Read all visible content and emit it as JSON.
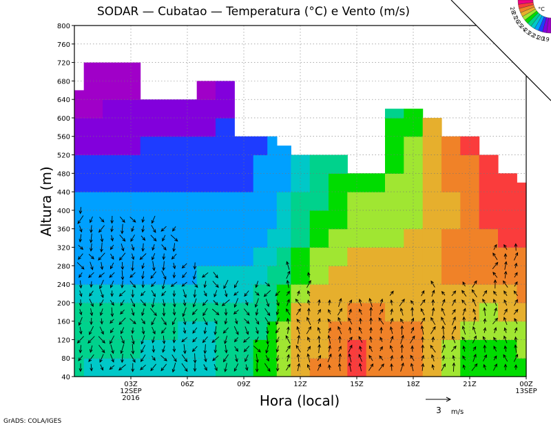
{
  "chart_data": {
    "type": "heatmap",
    "title": "SODAR — Cubatao — Temperatura (°C) e Vento (m/s)",
    "xlabel": "Hora (local)",
    "ylabel": "Altura (m)",
    "credit": "GrADS: COLA/IGES",
    "x_range_hours": [
      0,
      24
    ],
    "ylim": [
      40,
      800
    ],
    "y_ticks": [
      40,
      80,
      120,
      160,
      200,
      240,
      280,
      320,
      360,
      400,
      440,
      480,
      520,
      560,
      600,
      640,
      680,
      720,
      760,
      800
    ],
    "x_ticks": [
      {
        "hour": 3,
        "lines": [
          "03Z",
          "12SEP",
          "2016"
        ]
      },
      {
        "hour": 6,
        "lines": [
          "06Z"
        ]
      },
      {
        "hour": 9,
        "lines": [
          "09Z"
        ]
      },
      {
        "hour": 12,
        "lines": [
          "12Z"
        ]
      },
      {
        "hour": 15,
        "lines": [
          "15Z"
        ]
      },
      {
        "hour": 18,
        "lines": [
          "18Z"
        ]
      },
      {
        "hour": 21,
        "lines": [
          "21Z"
        ]
      },
      {
        "hour": 24,
        "lines": [
          "00Z",
          "13SEP"
        ]
      }
    ],
    "grid": true,
    "colorbar": {
      "unit": "°C",
      "levels": [
        "19",
        "20",
        "21",
        "22",
        "23",
        "24",
        "25",
        "26",
        "27",
        "28"
      ],
      "colors": [
        "#a000c8",
        "#8200dc",
        "#1e3cff",
        "#00a0ff",
        "#00c8c8",
        "#00d28c",
        "#00dc00",
        "#a0e632",
        "#e6af2d",
        "#f08228",
        "#fa3c3c",
        "#f00082"
      ]
    },
    "wind_reference": {
      "speed": 3,
      "label": "3",
      "unit": "m/s"
    },
    "temperature_columns": [
      {
        "hour": 0.0,
        "top": 660,
        "temps": [
          23.0,
          23.5,
          23.8,
          23.7,
          22.0,
          21.6,
          21.3,
          21.2,
          21.1,
          21.0,
          20.4,
          20.0,
          19.6,
          19.2,
          18.8,
          18.4,
          18.0
        ]
      },
      {
        "hour": 1.0,
        "top": 780,
        "temps": [
          22.8,
          23.3,
          23.6,
          23.7,
          22.0,
          21.6,
          21.3,
          21.2,
          21.1,
          21.0,
          20.5,
          20.1,
          19.7,
          19.3,
          18.9,
          18.6,
          18.0
        ]
      },
      {
        "hour": 2.0,
        "top": 760,
        "temps": [
          22.6,
          23.2,
          23.6,
          23.7,
          22.0,
          21.6,
          21.3,
          21.2,
          21.1,
          21.0,
          20.5,
          20.1,
          19.8,
          19.5,
          19.2,
          18.9,
          18.3
        ]
      },
      {
        "hour": 3.0,
        "top": 740,
        "temps": [
          22.4,
          23.0,
          23.4,
          23.6,
          22.1,
          21.6,
          21.4,
          21.2,
          21.1,
          21.0,
          20.6,
          20.2,
          19.9,
          19.6,
          19.2,
          18.9,
          18.4
        ]
      },
      {
        "hour": 4.0,
        "top": 640,
        "temps": [
          22.2,
          22.8,
          23.2,
          23.4,
          22.2,
          21.7,
          21.5,
          21.3,
          21.1,
          21.0,
          20.7,
          20.3,
          20.0,
          19.6,
          19.1,
          18.7,
          18.4
        ]
      },
      {
        "hour": 5.0,
        "top": 640,
        "temps": [
          22.0,
          22.6,
          23.0,
          23.2,
          22.3,
          21.8,
          21.5,
          21.3,
          21.1,
          21.0,
          20.8,
          20.4,
          20.0,
          19.6,
          19.1,
          18.6,
          18.3
        ]
      },
      {
        "hour": 6.0,
        "top": 640,
        "temps": [
          22.2,
          22.5,
          22.9,
          23.1,
          22.4,
          21.9,
          21.6,
          21.3,
          21.1,
          21.0,
          20.9,
          20.5,
          20.1,
          19.7,
          19.2,
          18.7,
          18.3
        ]
      },
      {
        "hour": 7.0,
        "top": 680,
        "temps": [
          22.6,
          22.7,
          22.9,
          23.0,
          22.5,
          22.0,
          21.7,
          21.4,
          21.2,
          21.0,
          20.9,
          20.7,
          20.3,
          19.9,
          19.4,
          18.9,
          18.4
        ]
      },
      {
        "hour": 8.0,
        "top": 680,
        "temps": [
          23.0,
          23.0,
          23.1,
          23.1,
          22.6,
          22.2,
          21.8,
          21.5,
          21.2,
          21.0,
          20.9,
          20.8,
          20.4,
          20.0,
          19.5,
          19.0,
          18.5
        ]
      },
      {
        "hour": 9.0,
        "top": 560,
        "temps": [
          23.3,
          23.3,
          23.3,
          23.3,
          22.8,
          22.3,
          21.9,
          21.6,
          21.3,
          21.1,
          20.9,
          20.8,
          20.5,
          20.1
        ]
      },
      {
        "hour": 10.0,
        "top": 560,
        "temps": [
          24.0,
          24.0,
          23.6,
          23.4,
          23.1,
          22.6,
          22.2,
          21.8,
          21.5,
          21.3,
          21.1,
          21.0,
          20.8,
          20.4
        ]
      },
      {
        "hour": 10.5,
        "top": 560,
        "temps": [
          24.8,
          24.6,
          24.2,
          23.8,
          23.5,
          23.0,
          22.6,
          22.2,
          21.8,
          21.6,
          21.4,
          21.2,
          21.0,
          20.6
        ]
      },
      {
        "hour": 11.0,
        "top": 540,
        "temps": [
          25.8,
          25.5,
          25.1,
          24.5,
          24.0,
          23.5,
          23.1,
          22.8,
          22.4,
          22.2,
          21.8,
          21.5,
          21.3
        ]
      },
      {
        "hour": 12.0,
        "top": 520,
        "temps": [
          26.8,
          26.6,
          26.3,
          26.0,
          25.4,
          24.8,
          24.3,
          23.8,
          23.3,
          23.0,
          22.6,
          22.2
        ]
      },
      {
        "hour": 13.0,
        "top": 520,
        "temps": [
          27.0,
          26.9,
          26.7,
          26.4,
          26.0,
          25.6,
          25.0,
          24.6,
          24.2,
          23.9,
          23.5,
          23.1
        ]
      },
      {
        "hour": 14.0,
        "top": 520,
        "temps": [
          27.3,
          27.2,
          27.0,
          26.8,
          26.5,
          26.1,
          25.7,
          25.3,
          24.9,
          24.6,
          24.2,
          23.8
        ]
      },
      {
        "hour": 15.0,
        "top": 480,
        "temps": [
          28.2,
          28.0,
          27.5,
          27.0,
          26.6,
          26.3,
          26.0,
          25.7,
          25.3,
          25.0,
          24.6
        ]
      },
      {
        "hour": 16.0,
        "top": 480,
        "temps": [
          27.8,
          27.6,
          27.4,
          27.0,
          26.6,
          26.3,
          26.0,
          25.6,
          25.3,
          25.0,
          24.6
        ]
      },
      {
        "hour": 17.0,
        "top": 620,
        "temps": [
          27.4,
          27.3,
          27.1,
          26.9,
          26.6,
          26.3,
          26.0,
          25.8,
          25.6,
          25.4,
          25.1,
          24.9,
          24.5,
          24.1,
          23.7
        ]
      },
      {
        "hour": 18.0,
        "top": 620,
        "temps": [
          27.2,
          27.1,
          27.0,
          26.9,
          26.7,
          26.4,
          26.2,
          26.0,
          25.8,
          25.7,
          25.5,
          25.3,
          25.0,
          24.8,
          24.5
        ]
      },
      {
        "hour": 19.0,
        "top": 600,
        "temps": [
          26.8,
          26.9,
          26.9,
          26.9,
          26.8,
          26.6,
          26.4,
          26.3,
          26.2,
          26.3,
          26.3,
          26.4,
          26.5,
          26.6
        ]
      },
      {
        "hour": 20.0,
        "top": 560,
        "temps": [
          25.5,
          25.8,
          26.2,
          26.6,
          26.9,
          27.1,
          27.1,
          27.0,
          26.9,
          26.9,
          27.0,
          27.1,
          27.3
        ]
      },
      {
        "hour": 21.0,
        "top": 560,
        "temps": [
          24.4,
          24.8,
          25.4,
          26.0,
          26.5,
          27.0,
          27.4,
          27.6,
          27.7,
          27.7,
          27.8,
          27.9,
          28.0
        ]
      },
      {
        "hour": 22.0,
        "top": 520,
        "temps": [
          24.0,
          24.5,
          25.2,
          25.9,
          26.6,
          27.2,
          27.6,
          27.9,
          28.0,
          28.1,
          28.2,
          28.3
        ]
      },
      {
        "hour": 23.0,
        "top": 480,
        "temps": [
          24.2,
          24.6,
          25.3,
          26.0,
          26.8,
          27.4,
          27.8,
          28.0,
          28.1,
          28.3,
          28.4
        ]
      },
      {
        "hour": 24.0,
        "top": 460,
        "temps": [
          24.6,
          25.0,
          25.6,
          26.3,
          27.0,
          27.6,
          27.9,
          28.0,
          28.2,
          28.3,
          28.5
        ]
      }
    ],
    "wind_columns": [
      {
        "hour": 0.33,
        "top": 400,
        "regime": "N"
      },
      {
        "hour": 0.9,
        "top": 380,
        "regime": "N"
      },
      {
        "hour": 1.45,
        "top": 380,
        "regime": "N"
      },
      {
        "hour": 2.0,
        "top": 380,
        "regime": "N"
      },
      {
        "hour": 2.55,
        "top": 380,
        "regime": "N"
      },
      {
        "hour": 3.1,
        "top": 380,
        "regime": "N"
      },
      {
        "hour": 3.65,
        "top": 380,
        "regime": "N"
      },
      {
        "hour": 4.2,
        "top": 380,
        "regime": "N"
      },
      {
        "hour": 4.75,
        "top": 360,
        "regime": "N"
      },
      {
        "hour": 5.3,
        "top": 360,
        "regime": "N"
      },
      {
        "hour": 5.85,
        "top": 280,
        "regime": "N"
      },
      {
        "hour": 6.4,
        "top": 280,
        "regime": "N"
      },
      {
        "hour": 6.95,
        "top": 260,
        "regime": "N"
      },
      {
        "hour": 7.5,
        "top": 260,
        "regime": "N"
      },
      {
        "hour": 8.05,
        "top": 240,
        "regime": "N"
      },
      {
        "hour": 8.6,
        "top": 240,
        "regime": "N"
      },
      {
        "hour": 9.15,
        "top": 220,
        "regime": "N"
      },
      {
        "hour": 9.7,
        "top": 240,
        "regime": "N"
      },
      {
        "hour": 10.25,
        "top": 240,
        "regime": "N"
      },
      {
        "hour": 10.8,
        "top": 220,
        "regime": "N"
      },
      {
        "hour": 11.35,
        "top": 280,
        "regime": "S"
      },
      {
        "hour": 11.9,
        "top": 220,
        "regime": "S"
      },
      {
        "hour": 12.45,
        "top": 260,
        "regime": "S"
      },
      {
        "hour": 13.0,
        "top": 200,
        "regime": "S"
      },
      {
        "hour": 13.55,
        "top": 200,
        "regime": "S"
      },
      {
        "hour": 14.1,
        "top": 200,
        "regime": "S"
      },
      {
        "hour": 14.65,
        "top": 200,
        "regime": "S"
      },
      {
        "hour": 15.2,
        "top": 200,
        "regime": "S"
      },
      {
        "hour": 15.75,
        "top": 200,
        "regime": "S"
      },
      {
        "hour": 16.3,
        "top": 200,
        "regime": "S"
      },
      {
        "hour": 16.85,
        "top": 220,
        "regime": "S"
      },
      {
        "hour": 17.4,
        "top": 200,
        "regime": "S"
      },
      {
        "hour": 17.95,
        "top": 200,
        "regime": "S"
      },
      {
        "hour": 18.5,
        "top": 220,
        "regime": "S"
      },
      {
        "hour": 19.05,
        "top": 240,
        "regime": "S"
      },
      {
        "hour": 19.6,
        "top": 220,
        "regime": "S"
      },
      {
        "hour": 20.15,
        "top": 220,
        "regime": "S"
      },
      {
        "hour": 20.7,
        "top": 240,
        "regime": "S"
      },
      {
        "hour": 21.25,
        "top": 240,
        "regime": "S"
      },
      {
        "hour": 21.8,
        "top": 220,
        "regime": "S"
      },
      {
        "hour": 22.35,
        "top": 320,
        "regime": "S"
      },
      {
        "hour": 22.9,
        "top": 320,
        "regime": "S"
      },
      {
        "hour": 23.45,
        "top": 320,
        "regime": "S"
      }
    ]
  }
}
